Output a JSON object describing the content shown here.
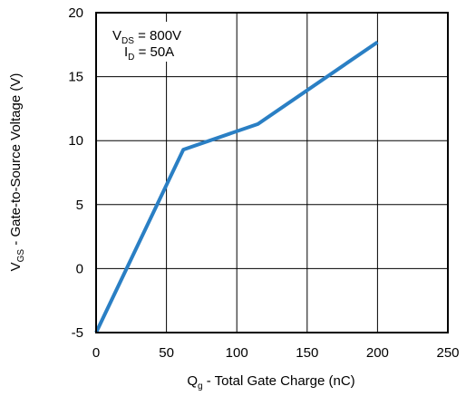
{
  "chart_data": {
    "type": "line",
    "title": "",
    "xlabel": {
      "main": "Q",
      "sub": "g",
      "rest": " - Total Gate Charge (nC)"
    },
    "ylabel": {
      "main": "V",
      "sub": "GS",
      "rest": " - Gate-to-Source Voltage (V)"
    },
    "xlim": [
      0,
      250
    ],
    "ylim": [
      -5,
      20
    ],
    "xticks": [
      0,
      50,
      100,
      150,
      200,
      250
    ],
    "yticks": [
      -5,
      0,
      5,
      10,
      15,
      20
    ],
    "xtick_labels": [
      "0",
      "50",
      "100",
      "150",
      "200",
      "250"
    ],
    "ytick_labels": [
      "-5",
      "0",
      "5",
      "10",
      "15",
      "20"
    ],
    "grid": true,
    "series": [
      {
        "color": "#2a7fc4",
        "x": [
          0,
          62,
          115,
          200
        ],
        "y": [
          -5,
          9.3,
          11.3,
          17.7
        ]
      }
    ],
    "annotations": [
      {
        "main": "V",
        "sub": "DS",
        "rest": " = 800V"
      },
      {
        "main": "I",
        "sub": "D",
        "rest": " = 50A"
      }
    ]
  }
}
